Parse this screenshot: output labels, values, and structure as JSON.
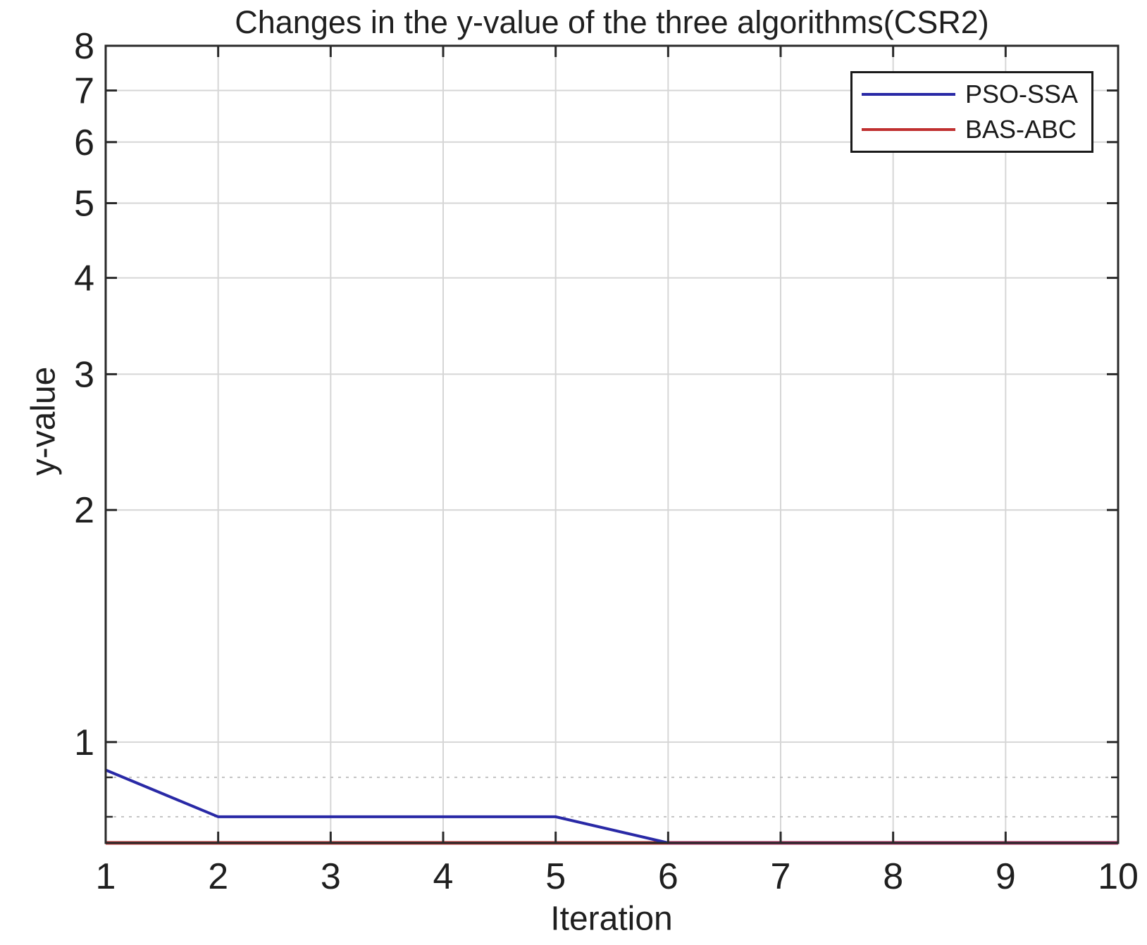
{
  "chart_data": {
    "type": "line",
    "title": "Changes in the y-value of the three algorithms(CSR2)",
    "xlabel": "Iteration",
    "ylabel": "y-value",
    "yscale": "log",
    "grid": true,
    "legend_position": "top-right",
    "xlim": [
      1,
      10
    ],
    "ylim": [
      0.74,
      8
    ],
    "xticks": [
      "1",
      "2",
      "3",
      "4",
      "5",
      "6",
      "7",
      "8",
      "9",
      "10"
    ],
    "yticks": [
      "1",
      "2",
      "3",
      "4",
      "5",
      "6",
      "7",
      "8"
    ],
    "y_minor_gridlines": [
      0.9,
      0.8
    ],
    "x": [
      1,
      2,
      3,
      4,
      5,
      6,
      7,
      8,
      9,
      10
    ],
    "series": [
      {
        "name": "PSO-SSA",
        "color": "#2929A6",
        "values": [
          0.92,
          0.8,
          0.8,
          0.8,
          0.8,
          0.74,
          0.74,
          0.74,
          0.74,
          0.74
        ]
      },
      {
        "name": "BAS-ABC",
        "color": "#C03030",
        "values": [
          0.74,
          0.74,
          0.74,
          0.74,
          0.74,
          0.74,
          0.74,
          0.74,
          0.74,
          0.74
        ]
      }
    ],
    "overlap_color": "#A5246A"
  },
  "styles": {
    "background": "#ffffff",
    "axis_color": "#2a2a2a",
    "text_color": "#1f1f1f",
    "grid_color": "#d6d6d6",
    "minor_grid_color": "#c2c2c2"
  }
}
